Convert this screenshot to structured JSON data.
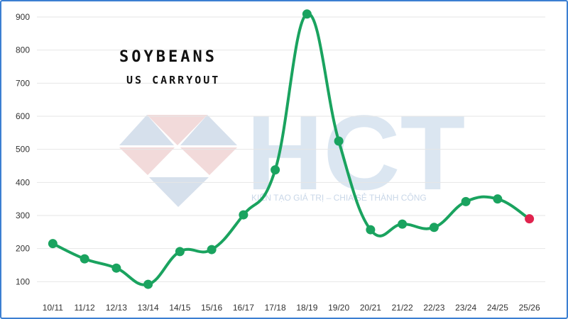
{
  "chart_data": {
    "type": "line",
    "title": "SOYBEANS",
    "subtitle": "US CARRYOUT",
    "xlabel": "",
    "ylabel": "",
    "categories": [
      "10/11",
      "11/12",
      "12/13",
      "13/14",
      "14/15",
      "15/16",
      "16/17",
      "17/18",
      "18/19",
      "19/20",
      "20/21",
      "21/22",
      "22/23",
      "23/24",
      "24/25",
      "25/26"
    ],
    "series": [
      {
        "values": [
          215,
          169,
          141,
          92,
          191,
          197,
          302,
          438,
          909,
          525,
          257,
          274,
          264,
          342,
          350,
          290
        ]
      }
    ],
    "yticks": [
      100,
      200,
      300,
      400,
      500,
      600,
      700,
      800,
      900
    ],
    "ylim": [
      60,
      930
    ],
    "grid": true,
    "line_color": "#1aa35f",
    "point_color": "#1aa35f",
    "last_point_color": "#e0234e"
  },
  "watermark": {
    "logo_text": "HCT",
    "tagline": "KIẾN TẠO GIÁ TRỊ – CHIA SẺ THÀNH CÔNG"
  }
}
